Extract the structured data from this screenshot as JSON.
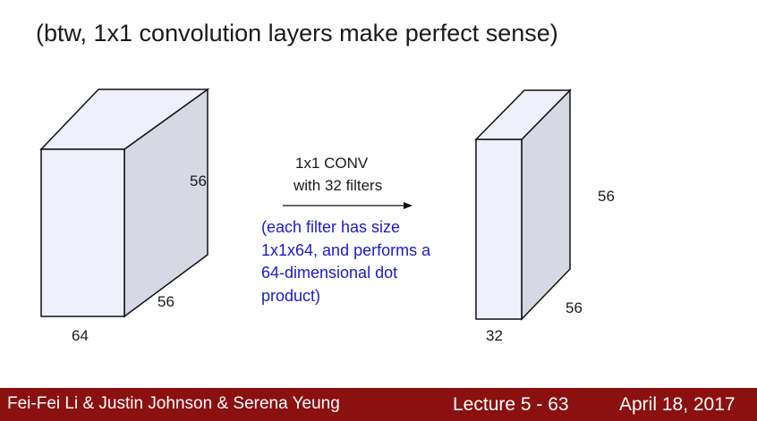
{
  "slide": {
    "title": "(btw, 1x1 convolution layers make perfect sense)"
  },
  "diagram": {
    "input_volume": {
      "height": "56",
      "depth": "56",
      "width": "64"
    },
    "operation": {
      "line1": "1x1 CONV",
      "line2": "with 32 filters"
    },
    "note_lines": [
      "(each filter has size",
      "1x1x64, and performs a",
      "64-dimensional dot",
      "product)"
    ],
    "output_volume": {
      "height": "56",
      "depth": "56",
      "width": "32"
    },
    "colors": {
      "front_face": "#eef0fb",
      "side_face": "#d6d9e3",
      "top_face": "#eef0fb",
      "edge": "#111111",
      "note_text": "#1a1acc"
    }
  },
  "footer": {
    "authors": "Fei-Fei Li & Justin Johnson & Serena Yeung",
    "lecture": "Lecture 5 - 63",
    "date": "April 18, 2017",
    "bar_color": "#8b1010"
  }
}
